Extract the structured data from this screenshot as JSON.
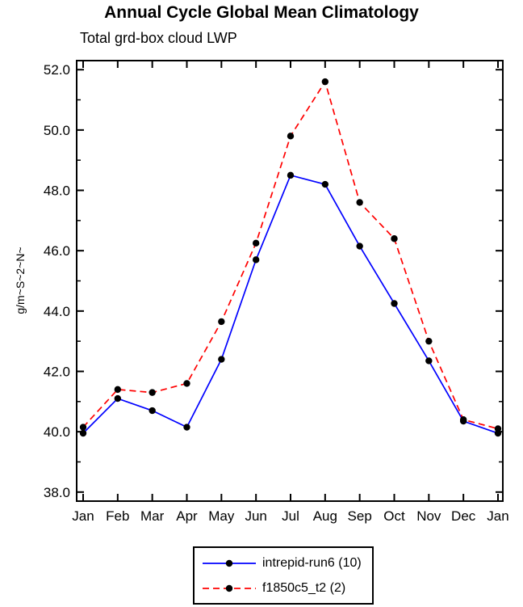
{
  "title": "Annual Cycle Global Mean Climatology",
  "subtitle": "Total grd-box cloud LWP",
  "chart_data": {
    "type": "line",
    "title": "Annual Cycle Global Mean Climatology",
    "subtitle": "Total grd-box cloud LWP",
    "xlabel": "",
    "ylabel": "g/m~S~2~N~",
    "categories": [
      "Jan",
      "Feb",
      "Mar",
      "Apr",
      "May",
      "Jun",
      "Jul",
      "Aug",
      "Sep",
      "Oct",
      "Nov",
      "Dec",
      "Jan"
    ],
    "ylim": [
      38.0,
      52.0
    ],
    "ytick_interval": 2.0,
    "yticks": [
      38.0,
      40.0,
      42.0,
      44.0,
      46.0,
      48.0,
      50.0,
      52.0
    ],
    "grid": false,
    "legend_position": "bottom",
    "marker": "filled-circle",
    "marker_color": "#000000",
    "series": [
      {
        "name": "intrepid-run6 (10)",
        "color": "#0000ff",
        "style": "solid",
        "values": [
          39.95,
          41.1,
          40.7,
          40.15,
          42.4,
          45.7,
          48.5,
          48.2,
          46.15,
          44.25,
          42.35,
          40.35,
          39.95
        ]
      },
      {
        "name": "f1850c5_t2 (2)",
        "color": "#ff0000",
        "style": "dashed",
        "values": [
          40.15,
          41.4,
          41.3,
          41.6,
          43.65,
          46.25,
          49.8,
          51.6,
          47.6,
          46.4,
          43.0,
          40.4,
          40.1
        ]
      }
    ]
  }
}
